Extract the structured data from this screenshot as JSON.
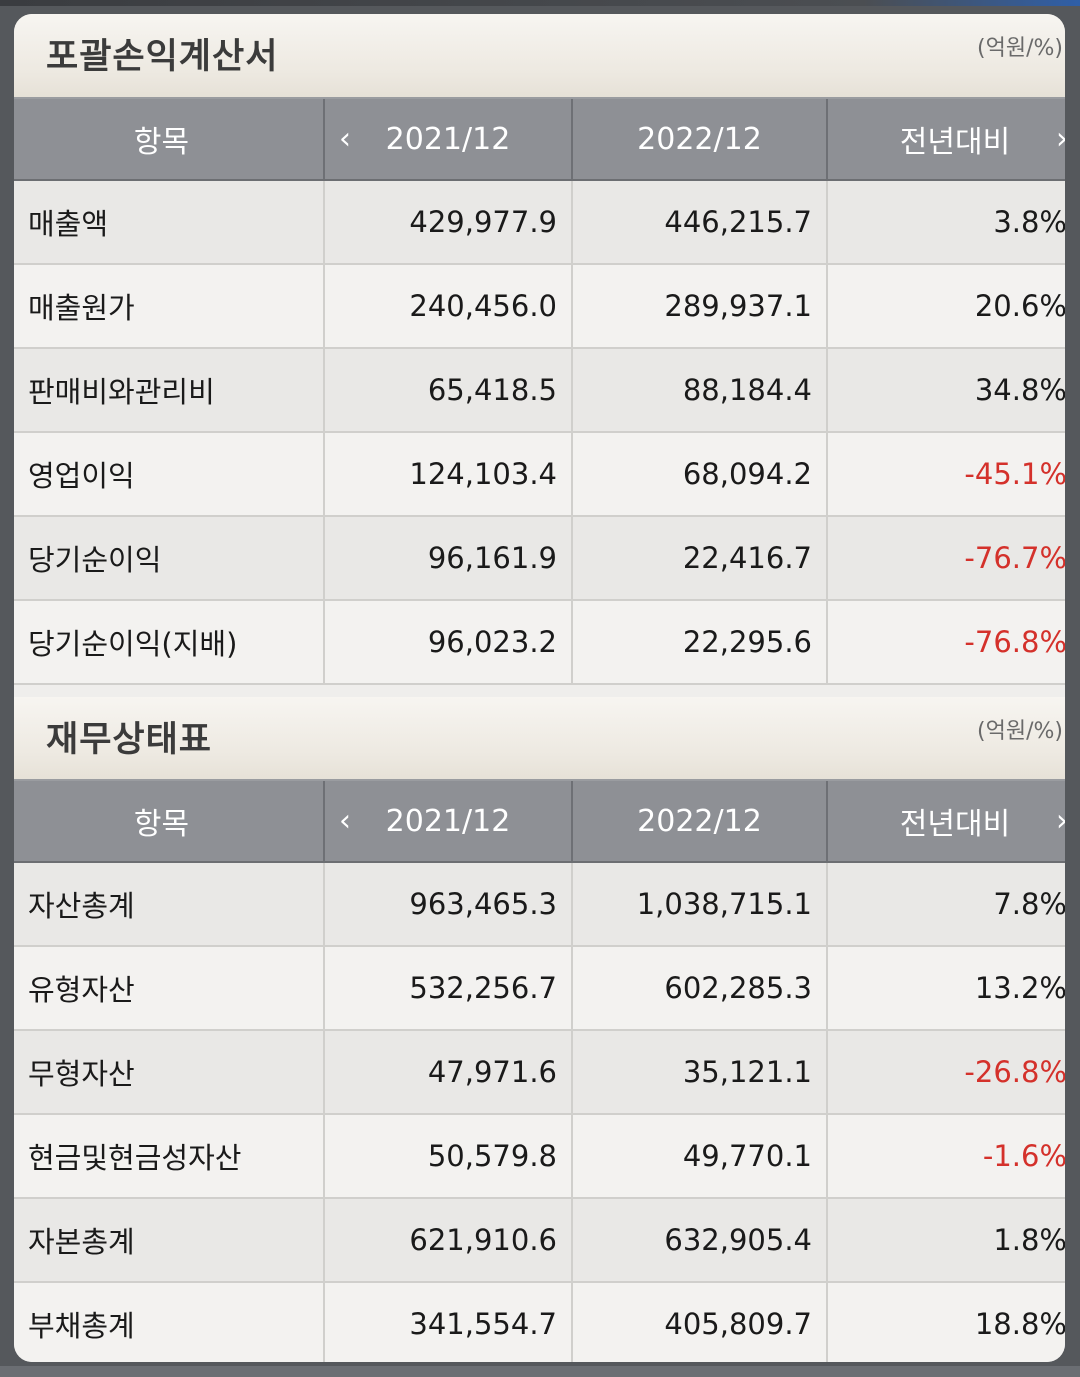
{
  "colors": {
    "negative": "#d4312b",
    "header_bg": "#8e9095",
    "section_bg": "#efeeec"
  },
  "sections": [
    {
      "title": "포괄손익계산서",
      "unit": "(억원/%)",
      "headers": {
        "item": "항목",
        "prev_icon": "‹",
        "col1": "2021/12",
        "col2": "2022/12",
        "yoy": "전년대비",
        "next_icon": "›"
      },
      "rows": [
        {
          "label": "매출액",
          "y2021": "429,977.9",
          "y2022": "446,215.7",
          "yoy": "3.8%",
          "negative": false
        },
        {
          "label": "매출원가",
          "y2021": "240,456.0",
          "y2022": "289,937.1",
          "yoy": "20.6%",
          "negative": false
        },
        {
          "label": "판매비와관리비",
          "y2021": "65,418.5",
          "y2022": "88,184.4",
          "yoy": "34.8%",
          "negative": false
        },
        {
          "label": "영업이익",
          "y2021": "124,103.4",
          "y2022": "68,094.2",
          "yoy": "-45.1%",
          "negative": true
        },
        {
          "label": "당기순이익",
          "y2021": "96,161.9",
          "y2022": "22,416.7",
          "yoy": "-76.7%",
          "negative": true
        },
        {
          "label": "당기순이익(지배)",
          "y2021": "96,023.2",
          "y2022": "22,295.6",
          "yoy": "-76.8%",
          "negative": true
        }
      ]
    },
    {
      "title": "재무상태표",
      "unit": "(억원/%)",
      "headers": {
        "item": "항목",
        "prev_icon": "‹",
        "col1": "2021/12",
        "col2": "2022/12",
        "yoy": "전년대비",
        "next_icon": "›"
      },
      "rows": [
        {
          "label": "자산총계",
          "y2021": "963,465.3",
          "y2022": "1,038,715.1",
          "yoy": "7.8%",
          "negative": false
        },
        {
          "label": "유형자산",
          "y2021": "532,256.7",
          "y2022": "602,285.3",
          "yoy": "13.2%",
          "negative": false
        },
        {
          "label": "무형자산",
          "y2021": "47,971.6",
          "y2022": "35,121.1",
          "yoy": "-26.8%",
          "negative": true
        },
        {
          "label": "현금및현금성자산",
          "y2021": "50,579.8",
          "y2022": "49,770.1",
          "yoy": "-1.6%",
          "negative": true
        },
        {
          "label": "자본총계",
          "y2021": "621,910.6",
          "y2022": "632,905.4",
          "yoy": "1.8%",
          "negative": false
        },
        {
          "label": "부채총계",
          "y2021": "341,554.7",
          "y2022": "405,809.7",
          "yoy": "18.8%",
          "negative": false
        }
      ]
    }
  ]
}
